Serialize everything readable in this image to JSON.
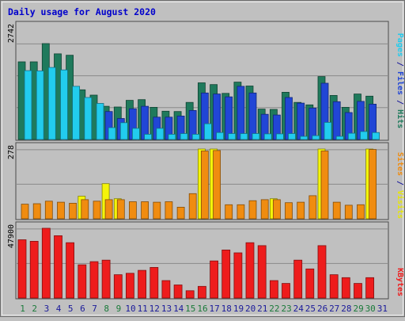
{
  "chart_data": {
    "type": "bar",
    "title": "Daily usage for August 2020",
    "categories": [
      "1",
      "2",
      "3",
      "4",
      "5",
      "6",
      "7",
      "8",
      "9",
      "10",
      "11",
      "12",
      "13",
      "14",
      "15",
      "16",
      "17",
      "18",
      "19",
      "20",
      "21",
      "22",
      "23",
      "24",
      "25",
      "26",
      "27",
      "28",
      "29",
      "30",
      "31"
    ],
    "weekend_categories": [
      "1",
      "2",
      "8",
      "9",
      "15",
      "16",
      "22",
      "23",
      "29",
      "30"
    ],
    "panels": [
      {
        "name": "hits-files-pages",
        "max_label": "2742",
        "ymax": 2742,
        "ylabel_parts": [
          "Pages",
          "Files",
          "Hits"
        ],
        "series": [
          {
            "name": "Hits",
            "color": "#1f7a5c",
            "values": [
              2220,
              2220,
              2742,
              2450,
              2410,
              1420,
              1270,
              950,
              930,
              1120,
              1140,
              920,
              810,
              800,
              1060,
              1620,
              1570,
              1320,
              1640,
              1530,
              870,
              860,
              1350,
              1060,
              990,
              1800,
              1260,
              920,
              1300,
              1240,
              null
            ]
          },
          {
            "name": "Files",
            "color": "#2146d6",
            "values": [
              null,
              null,
              null,
              null,
              null,
              null,
              null,
              800,
              600,
              880,
              950,
              640,
              640,
              670,
              830,
              1330,
              1300,
              1220,
              1520,
              1330,
              720,
              700,
              1200,
              1040,
              900,
              1610,
              1080,
              770,
              1090,
              1010,
              null
            ]
          },
          {
            "name": "Pages",
            "color": "#22ccee",
            "values": [
              1970,
              1960,
              2060,
              1990,
              1520,
              1200,
              1030,
              340,
              480,
              320,
              150,
              320,
              150,
              170,
              150,
              450,
              200,
              170,
              170,
              170,
              160,
              160,
              170,
              90,
              110,
              490,
              90,
              180,
              230,
              200,
              null
            ]
          }
        ]
      },
      {
        "name": "visits-sites",
        "max_label": "278",
        "ymax": 278,
        "ylabel_parts": [
          "Sites",
          "Visits"
        ],
        "series": [
          {
            "name": "Visits",
            "color": "#f4f40a",
            "values": [
              null,
              null,
              null,
              null,
              null,
              90,
              null,
              140,
              80,
              null,
              null,
              null,
              null,
              null,
              null,
              278,
              278,
              null,
              null,
              null,
              null,
              80,
              null,
              null,
              null,
              278,
              null,
              null,
              null,
              278,
              null
            ]
          },
          {
            "name": "Sites",
            "color": "#f08c10",
            "values": [
              58,
              60,
              70,
              66,
              62,
              76,
              70,
              76,
              76,
              68,
              68,
              66,
              68,
              46,
              100,
              270,
              272,
              56,
              56,
              72,
              76,
              76,
              64,
              66,
              92,
              270,
              66,
              54,
              56,
              276,
              null
            ]
          }
        ]
      },
      {
        "name": "kbytes",
        "max_label": "47900",
        "ymax": 47900,
        "ylabel_parts": [
          "KBytes"
        ],
        "series": [
          {
            "name": "KBytes",
            "color": "#ee1c1c",
            "values": [
              40000,
              39000,
              47900,
              42800,
              38000,
              22800,
              25000,
              26000,
              16000,
              17000,
              19000,
              21000,
              12000,
              9000,
              5000,
              8000,
              25500,
              33000,
              31000,
              38000,
              36000,
              12000,
              10000,
              26000,
              20000,
              36000,
              16000,
              14000,
              10000,
              14000,
              null
            ]
          }
        ]
      }
    ]
  },
  "colors": {
    "background": "#c0c0c0",
    "grid": "#8a8a8a",
    "title": "#0000cc",
    "weekday_label": "#1a1a9a",
    "weekend_label": "#1a7a3a"
  }
}
